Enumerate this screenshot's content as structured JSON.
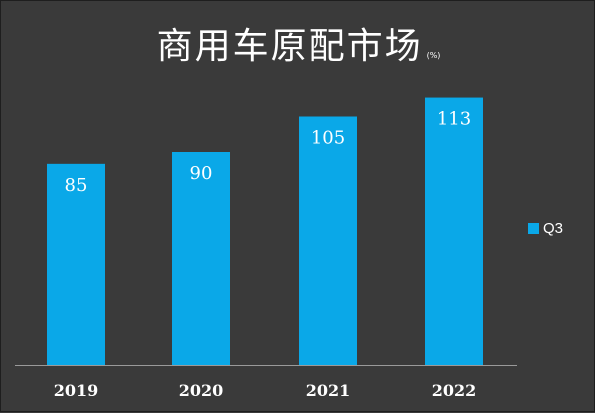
{
  "chart_data": {
    "type": "bar",
    "title": "商用车原配市场",
    "unit_label": "(%)",
    "categories": [
      "2019",
      "2020",
      "2021",
      "2022"
    ],
    "series": [
      {
        "name": "Q3",
        "values": [
          85,
          90,
          105,
          113
        ]
      }
    ],
    "ylim": [
      0,
      120
    ],
    "grid": false,
    "legend_position": "right",
    "data_labels": true,
    "colors": {
      "background": "#3a3a3a",
      "bar": "#0aa8e8",
      "text": "#ffffff",
      "axis": "#9a9a9a"
    }
  }
}
